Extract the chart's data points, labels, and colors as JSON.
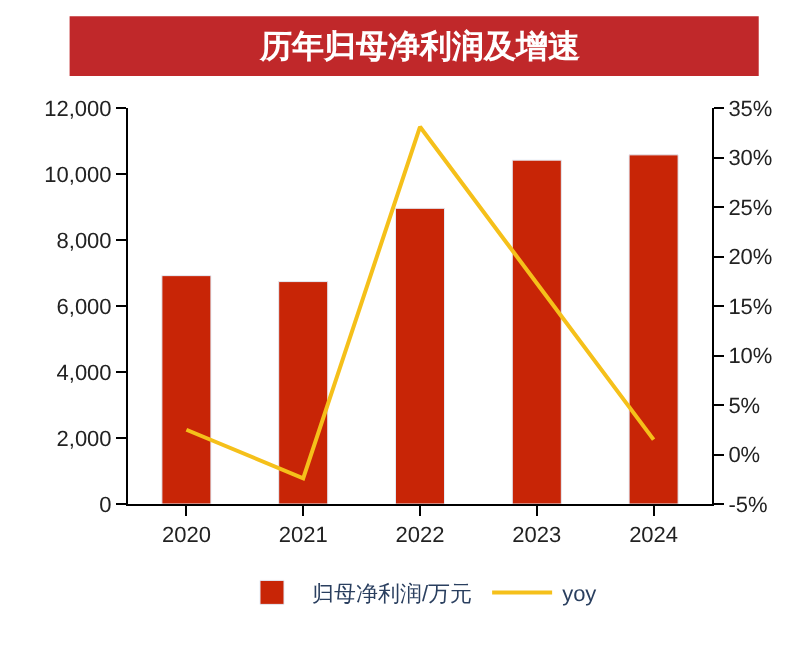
{
  "chart_data": {
    "type": "bar",
    "title": "历年归母净利润及增速",
    "categories": [
      "2020",
      "2021",
      "2022",
      "2023",
      "2024"
    ],
    "series": [
      {
        "name": "归母净利润/万元",
        "color": "#c82506",
        "values": [
          6920,
          6740,
          8960,
          10420,
          10580
        ]
      },
      {
        "name": "yoy",
        "type": "line",
        "axis": "y2",
        "color": "#f5c01a",
        "values": [
          2.5,
          -2.4,
          33.1,
          17.3,
          1.5
        ]
      }
    ],
    "ylim": [
      0,
      12000
    ],
    "yticks": [
      {
        "value": 0,
        "label": "0"
      },
      {
        "value": 2000,
        "label": "2,000"
      },
      {
        "value": 4000,
        "label": "4,000"
      },
      {
        "value": 6000,
        "label": "6,000"
      },
      {
        "value": 8000,
        "label": "8,000"
      },
      {
        "value": 10000,
        "label": "10,000"
      },
      {
        "value": 12000,
        "label": "12,000"
      }
    ],
    "y2lim": [
      -5,
      35
    ],
    "y2ticks": [
      {
        "value": -5,
        "label": "-5%"
      },
      {
        "value": 0,
        "label": "0%"
      },
      {
        "value": 5,
        "label": "5%"
      },
      {
        "value": 10,
        "label": "10%"
      },
      {
        "value": 15,
        "label": "15%"
      },
      {
        "value": 20,
        "label": "20%"
      },
      {
        "value": 25,
        "label": "25%"
      },
      {
        "value": 30,
        "label": "30%"
      },
      {
        "value": 35,
        "label": "35%"
      }
    ],
    "legend": "bottom",
    "marker": "none"
  }
}
